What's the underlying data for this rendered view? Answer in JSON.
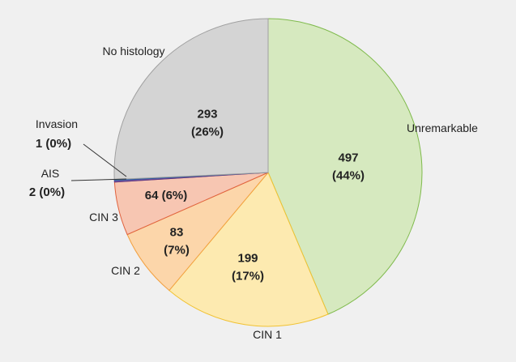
{
  "chart_data": {
    "type": "pie",
    "categories": [
      "Unremarkable",
      "CIN 1",
      "CIN 2",
      "CIN 3",
      "AIS",
      "Invasion",
      "No histology"
    ],
    "values": [
      497,
      199,
      83,
      64,
      2,
      1,
      293
    ],
    "value_labels": [
      "497 (44%)",
      "199 (17%)",
      "83 (7%)",
      "64 (6%)",
      "2 (0%)",
      "1 (0%)",
      "293 (26%)"
    ],
    "colors": [
      "#d6e9bf",
      "#fdeab0",
      "#fcd6aa",
      "#f7c6b2",
      "#7b5aa6",
      "#3f7fc4",
      "#d4d4d4"
    ],
    "edge_colors": [
      "#7fba4c",
      "#f1c232",
      "#f2a040",
      "#e0623f",
      "#5a3a86",
      "#2a60a0",
      "#a0a0a0"
    ]
  }
}
